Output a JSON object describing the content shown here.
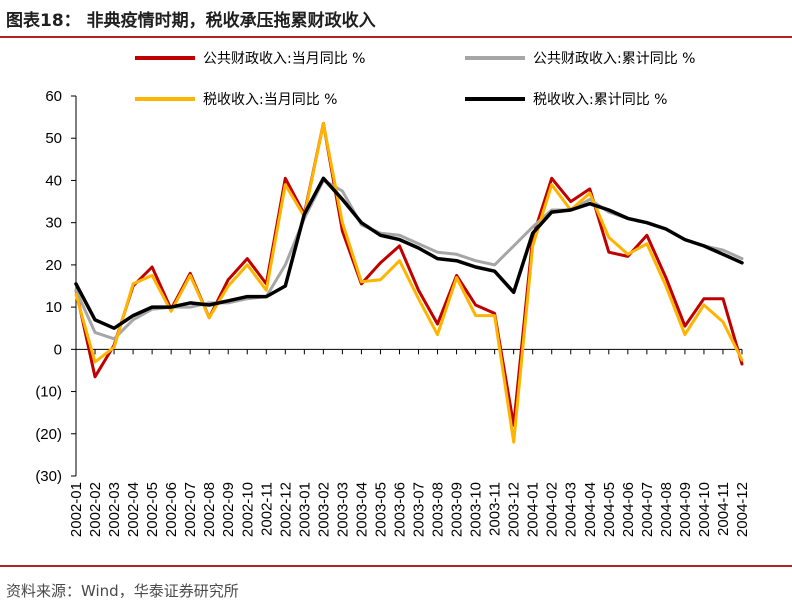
{
  "figure": {
    "title": "图表18：  非典疫情时期，税收承压拖累财政收入",
    "source": "资料来源：Wind，华泰证券研究所"
  },
  "chart_data": {
    "type": "line",
    "title": "",
    "xlabel": "",
    "ylabel": "",
    "ylim": [
      -30,
      60
    ],
    "yticks": [
      -30,
      -20,
      -10,
      0,
      10,
      20,
      30,
      40,
      50,
      60
    ],
    "ytick_labels": [
      "(30)",
      "(20)",
      "(10)",
      "0",
      "10",
      "20",
      "30",
      "40",
      "50",
      "60"
    ],
    "grid": false,
    "legend_position": "top",
    "categories": [
      "2002-01",
      "2002-02",
      "2002-03",
      "2002-04",
      "2002-05",
      "2002-06",
      "2002-07",
      "2002-08",
      "2002-09",
      "2002-10",
      "2002-11",
      "2002-12",
      "2003-01",
      "2003-02",
      "2003-03",
      "2003-04",
      "2003-05",
      "2003-06",
      "2003-07",
      "2003-08",
      "2003-09",
      "2003-10",
      "2003-11",
      "2003-12",
      "2004-01",
      "2004-02",
      "2004-03",
      "2004-04",
      "2004-05",
      "2004-06",
      "2004-07",
      "2004-08",
      "2004-09",
      "2004-10",
      "2004-11",
      "2004-12"
    ],
    "series": [
      {
        "name": "公共财政收入:当月同比 %",
        "color": "#c00000",
        "width": 3,
        "values": [
          14,
          -6.5,
          1,
          15,
          19.5,
          9.5,
          18,
          7.5,
          16.5,
          21.5,
          15.5,
          40.5,
          32,
          53.5,
          28,
          15.5,
          20.5,
          24.5,
          14,
          6,
          17.5,
          10.5,
          8.5,
          -18,
          26.5,
          40.5,
          35,
          38,
          23,
          22,
          27,
          17,
          5.5,
          12,
          12,
          -3.5
        ]
      },
      {
        "name": "公共财政收入:累计同比 %",
        "color": "#a6a6a6",
        "width": 3,
        "values": [
          14,
          4,
          2.5,
          7,
          9.5,
          10,
          10,
          11,
          11,
          12,
          12.5,
          20,
          31,
          40,
          37.5,
          29.5,
          27.5,
          27,
          25,
          23,
          22.5,
          21,
          20,
          24.5,
          29,
          33,
          33,
          35.5,
          32.5,
          31,
          30,
          28.5,
          26,
          24.5,
          23.5,
          21.5
        ]
      },
      {
        "name": "税收收入:当月同比 %",
        "color": "#ffb400",
        "width": 3,
        "values": [
          13,
          -3,
          0.5,
          15.5,
          17.5,
          9,
          17.5,
          7.5,
          15,
          20,
          14,
          39,
          31.5,
          53.5,
          30,
          16,
          16.5,
          21,
          12,
          3.5,
          17,
          8,
          8,
          -22,
          24.5,
          39,
          33,
          37,
          26.5,
          22.5,
          25,
          15,
          3.5,
          10.5,
          6.5,
          -2.5
        ]
      },
      {
        "name": "税收收入:累计同比 %",
        "color": "#000000",
        "width": 3.5,
        "values": [
          15.5,
          7,
          5,
          8,
          10,
          10,
          11,
          10.5,
          11.5,
          12.5,
          12.5,
          15,
          32,
          40.5,
          35.5,
          30,
          27,
          26,
          24,
          21.5,
          21,
          19.5,
          18.5,
          13.5,
          27.5,
          32.5,
          33,
          34.5,
          33,
          31,
          30,
          28.5,
          26,
          24.5,
          22.5,
          20.5
        ]
      }
    ]
  }
}
